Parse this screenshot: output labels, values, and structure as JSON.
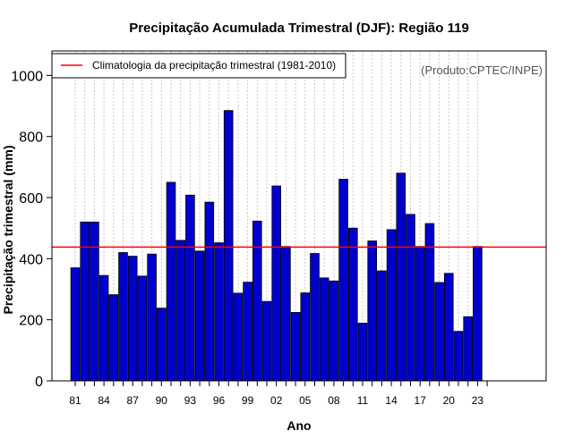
{
  "chart_data": {
    "type": "bar",
    "title": "Precipitação Acumulada Trimestral (DJF): Região 119",
    "xlabel": "Ano",
    "ylabel": "Precipitação trimestral (mm)",
    "ylim": [
      0,
      1080
    ],
    "yticks": [
      "0",
      "200",
      "400",
      "600",
      "800",
      "1000"
    ],
    "x_tick_labels": [
      "81",
      "84",
      "87",
      "90",
      "93",
      "96",
      "99",
      "02",
      "05",
      "08",
      "11",
      "14",
      "17",
      "20",
      "23"
    ],
    "years": [
      1981,
      1982,
      1983,
      1984,
      1985,
      1986,
      1987,
      1988,
      1989,
      1990,
      1991,
      1992,
      1993,
      1994,
      1995,
      1996,
      1997,
      1998,
      1999,
      2000,
      2001,
      2002,
      2003,
      2004,
      2005,
      2006,
      2007,
      2008,
      2009,
      2010,
      2011,
      2012,
      2013,
      2014,
      2015,
      2016,
      2017,
      2018,
      2019,
      2020,
      2021,
      2022,
      2023
    ],
    "values": [
      370,
      520,
      520,
      345,
      282,
      420,
      408,
      343,
      415,
      238,
      650,
      460,
      608,
      425,
      585,
      452,
      885,
      287,
      323,
      523,
      260,
      638,
      440,
      224,
      288,
      417,
      337,
      327,
      660,
      500,
      189,
      458,
      360,
      495,
      680,
      545,
      440,
      515,
      322,
      352,
      162,
      210,
      440
    ],
    "bar_color": "#0000cc",
    "climatology": {
      "label": "Climatologia da precipitação trimestral (1981-2010)",
      "value": 438,
      "color": "#ff0000"
    },
    "legend_position": "top-left",
    "grid": "vertical dotted",
    "source": "(Produto:CPTEC/INPE)"
  }
}
